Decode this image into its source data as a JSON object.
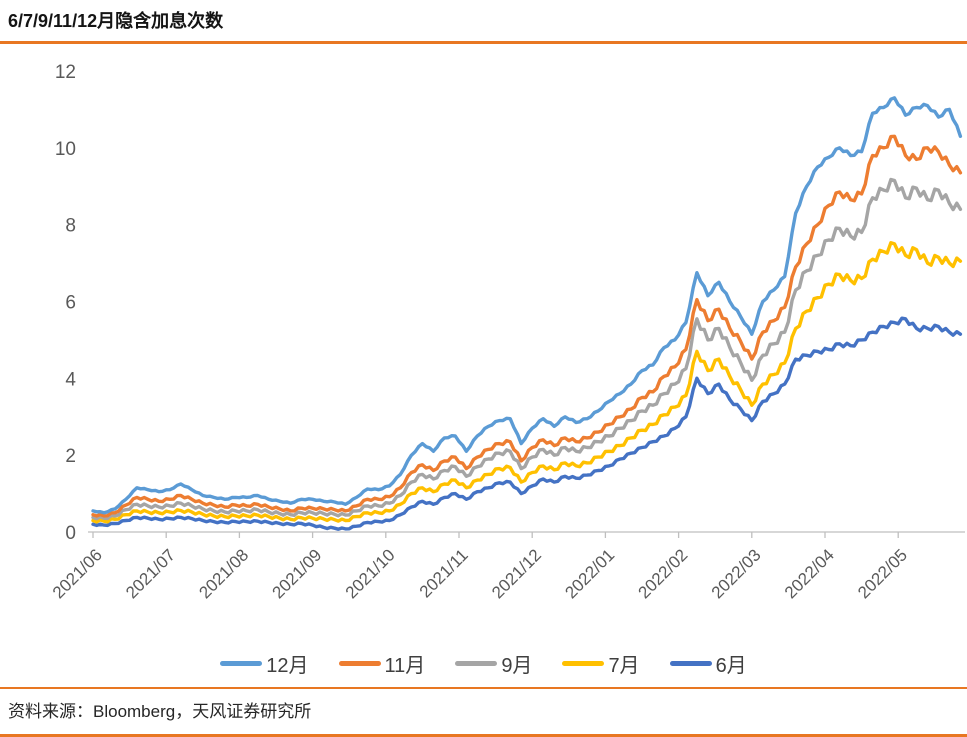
{
  "page": {
    "title": "6/7/9/11/12月隐含加息次数",
    "source_note": "资料来源：Bloomberg，天风证券研究所",
    "accent_color": "#E87722"
  },
  "chart_data": {
    "type": "line",
    "title": "6/7/9/11/12月隐含加息次数",
    "xlabel": "",
    "ylabel": "",
    "ylim": [
      0,
      12
    ],
    "yticks": [
      0,
      2,
      4,
      6,
      8,
      10,
      12
    ],
    "grid": false,
    "legend_position": "bottom",
    "axis_line_color": "#BFBFBF",
    "tick_label_color": "#595959",
    "x_tick_labels": [
      "2021/06",
      "2021/07",
      "2021/08",
      "2021/09",
      "2021/10",
      "2021/11",
      "2021/12",
      "2022/01",
      "2022/02",
      "2022/03",
      "2022/04",
      "2022/05"
    ],
    "x_domain_months": [
      0,
      11.85
    ],
    "sample_step_months": 0.15,
    "series": [
      {
        "name": "12月",
        "key": "12m",
        "color": "#5B9BD5",
        "values": [
          0.55,
          0.5,
          0.6,
          0.85,
          1.15,
          1.1,
          1.05,
          1.1,
          1.25,
          1.1,
          0.95,
          0.9,
          0.85,
          0.9,
          0.9,
          0.95,
          0.85,
          0.8,
          0.75,
          0.85,
          0.85,
          0.8,
          0.78,
          0.72,
          0.9,
          1.12,
          1.1,
          1.2,
          1.5,
          2.0,
          2.3,
          2.1,
          2.45,
          2.5,
          2.1,
          2.5,
          2.75,
          2.9,
          2.95,
          2.3,
          2.7,
          2.95,
          2.75,
          3.0,
          2.85,
          2.95,
          3.15,
          3.4,
          3.6,
          3.85,
          4.2,
          4.35,
          4.8,
          5.0,
          5.45,
          6.75,
          6.15,
          6.5,
          6.0,
          5.6,
          5.15,
          6.0,
          6.3,
          6.65,
          8.3,
          9.0,
          9.5,
          9.75,
          10.0,
          9.8,
          9.9,
          10.9,
          11.05,
          11.3,
          10.85,
          11.05,
          11.1,
          10.8,
          11.0,
          10.3
        ]
      },
      {
        "name": "11月",
        "key": "11m",
        "color": "#ED7D31",
        "values": [
          0.45,
          0.42,
          0.5,
          0.7,
          0.9,
          0.85,
          0.8,
          0.85,
          0.95,
          0.85,
          0.75,
          0.7,
          0.65,
          0.7,
          0.68,
          0.72,
          0.65,
          0.6,
          0.55,
          0.62,
          0.62,
          0.6,
          0.58,
          0.55,
          0.68,
          0.85,
          0.85,
          0.92,
          1.15,
          1.55,
          1.75,
          1.6,
          1.85,
          1.95,
          1.65,
          1.95,
          2.15,
          2.3,
          2.35,
          1.85,
          2.2,
          2.4,
          2.25,
          2.45,
          2.35,
          2.45,
          2.6,
          2.8,
          3.0,
          3.2,
          3.5,
          3.65,
          4.05,
          4.3,
          4.75,
          6.05,
          5.5,
          5.8,
          5.3,
          4.95,
          4.5,
          5.2,
          5.5,
          5.85,
          6.9,
          7.5,
          8.0,
          8.5,
          8.85,
          8.65,
          8.8,
          9.8,
          10.0,
          10.3,
          9.8,
          9.7,
          10.0,
          9.9,
          9.55,
          9.35
        ]
      },
      {
        "name": "9月",
        "key": "9m",
        "color": "#A5A5A5",
        "values": [
          0.38,
          0.36,
          0.42,
          0.58,
          0.72,
          0.68,
          0.65,
          0.68,
          0.75,
          0.68,
          0.6,
          0.55,
          0.52,
          0.55,
          0.55,
          0.58,
          0.52,
          0.48,
          0.45,
          0.5,
          0.5,
          0.48,
          0.46,
          0.44,
          0.55,
          0.68,
          0.68,
          0.75,
          0.95,
          1.3,
          1.5,
          1.38,
          1.6,
          1.7,
          1.45,
          1.7,
          1.9,
          2.05,
          2.1,
          1.65,
          1.95,
          2.15,
          2.0,
          2.2,
          2.1,
          2.2,
          2.35,
          2.5,
          2.7,
          2.9,
          3.15,
          3.3,
          3.6,
          3.85,
          4.25,
          5.55,
          5.0,
          5.3,
          4.8,
          4.4,
          3.95,
          4.6,
          4.9,
          5.2,
          6.3,
          6.8,
          7.2,
          7.6,
          7.9,
          7.7,
          7.8,
          8.7,
          8.9,
          9.15,
          8.7,
          8.95,
          8.65,
          8.9,
          8.55,
          8.4
        ]
      },
      {
        "name": "7月",
        "key": "7m",
        "color": "#FFC000",
        "values": [
          0.3,
          0.28,
          0.33,
          0.45,
          0.55,
          0.52,
          0.5,
          0.52,
          0.56,
          0.52,
          0.46,
          0.42,
          0.4,
          0.42,
          0.42,
          0.44,
          0.4,
          0.36,
          0.33,
          0.37,
          0.36,
          0.34,
          0.32,
          0.3,
          0.4,
          0.5,
          0.5,
          0.55,
          0.72,
          1.0,
          1.15,
          1.05,
          1.25,
          1.35,
          1.15,
          1.35,
          1.5,
          1.65,
          1.68,
          1.3,
          1.55,
          1.72,
          1.62,
          1.8,
          1.72,
          1.8,
          1.95,
          2.1,
          2.25,
          2.45,
          2.65,
          2.8,
          3.05,
          3.25,
          3.55,
          4.7,
          4.2,
          4.5,
          4.05,
          3.7,
          3.3,
          3.85,
          4.1,
          4.4,
          5.3,
          5.75,
          6.1,
          6.45,
          6.7,
          6.55,
          6.6,
          7.1,
          7.3,
          7.5,
          7.2,
          7.35,
          7.0,
          7.15,
          7.0,
          7.05
        ]
      },
      {
        "name": "6月",
        "key": "6m",
        "color": "#4472C4",
        "values": [
          0.2,
          0.18,
          0.22,
          0.3,
          0.38,
          0.36,
          0.33,
          0.35,
          0.38,
          0.35,
          0.3,
          0.27,
          0.25,
          0.27,
          0.27,
          0.28,
          0.25,
          0.22,
          0.2,
          0.22,
          0.18,
          0.12,
          0.1,
          0.08,
          0.15,
          0.25,
          0.27,
          0.3,
          0.45,
          0.65,
          0.8,
          0.72,
          0.9,
          1.0,
          0.85,
          1.05,
          1.15,
          1.28,
          1.3,
          1.0,
          1.2,
          1.38,
          1.3,
          1.45,
          1.4,
          1.48,
          1.6,
          1.72,
          1.9,
          2.05,
          2.2,
          2.35,
          2.5,
          2.7,
          3.0,
          4.0,
          3.6,
          3.85,
          3.45,
          3.2,
          2.9,
          3.4,
          3.6,
          3.85,
          4.5,
          4.6,
          4.7,
          4.75,
          4.9,
          4.85,
          5.0,
          5.2,
          5.35,
          5.45,
          5.55,
          5.3,
          5.3,
          5.35,
          5.2,
          5.15
        ]
      }
    ]
  }
}
